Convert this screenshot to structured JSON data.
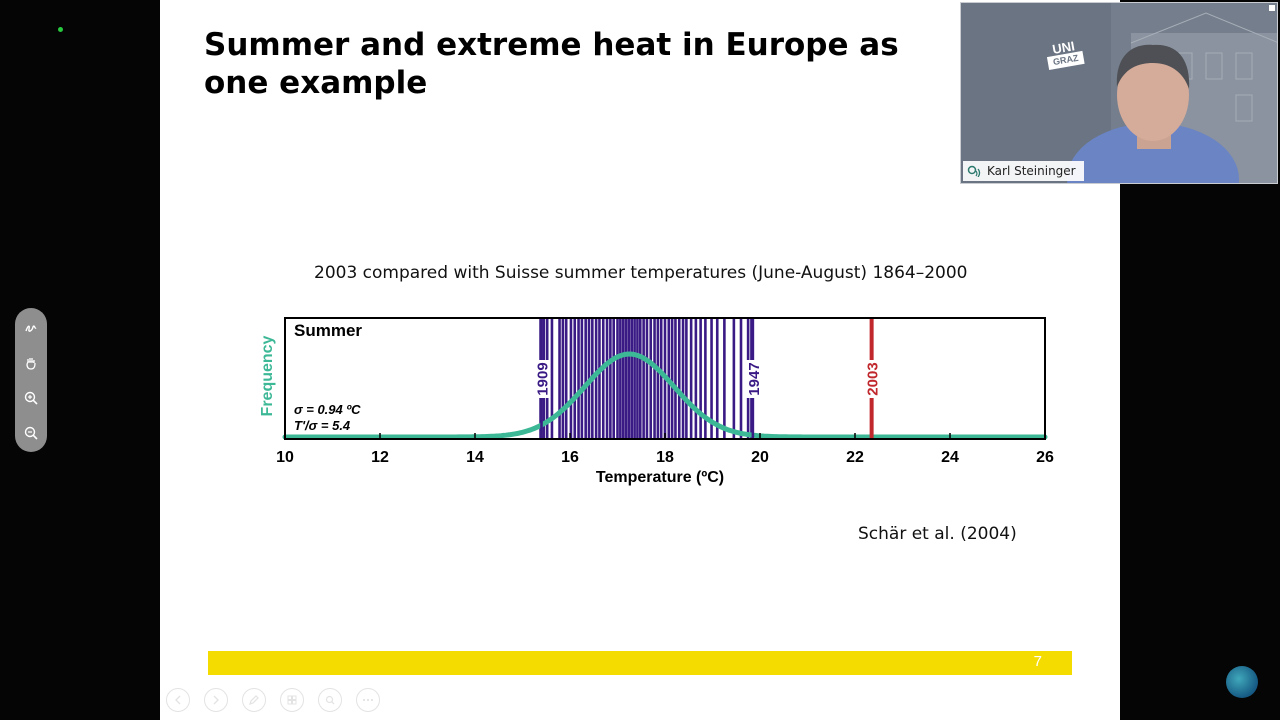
{
  "slide": {
    "title": "Summer and extreme heat in Europe as one example",
    "subtitle": "2003 compared with Suisse summer temperatures (June-August) 1864–2000",
    "citation": "Schär et al. (2004)",
    "page_number": "7"
  },
  "video": {
    "participant_name": "Karl Steininger",
    "logo_top": "UNI",
    "logo_bottom": "GRAZ"
  },
  "toolbar": {
    "icons": [
      "pen-icon",
      "hand-icon",
      "zoom-in-icon",
      "zoom-out-icon"
    ]
  },
  "presentation_controls": [
    "previous-icon",
    "next-icon",
    "pen-icon",
    "slides-icon",
    "zoom-icon",
    "more-icon"
  ],
  "chart_data": {
    "type": "line",
    "panel_label": "Summer",
    "xlabel": "Temperature (ºC)",
    "ylabel": "Frequency",
    "xlim": [
      10,
      26
    ],
    "xticks": [
      10,
      12,
      14,
      16,
      18,
      20,
      22,
      24,
      26
    ],
    "stats": [
      "σ = 0.94 ºC",
      "T'/σ = 5.4"
    ],
    "distribution": {
      "mean": 17.25,
      "sd": 0.94,
      "color": "#3cb896"
    },
    "year_lines": [
      15.38,
      15.45,
      15.52,
      15.62,
      15.78,
      15.85,
      15.92,
      16.02,
      16.1,
      16.18,
      16.25,
      16.33,
      16.4,
      16.47,
      16.55,
      16.62,
      16.7,
      16.78,
      16.85,
      16.92,
      17.0,
      17.06,
      17.12,
      17.18,
      17.24,
      17.3,
      17.36,
      17.42,
      17.48,
      17.55,
      17.62,
      17.7,
      17.78,
      17.85,
      17.92,
      18.0,
      18.08,
      18.15,
      18.22,
      18.3,
      18.38,
      18.45,
      18.55,
      18.65,
      18.75,
      18.85,
      18.98,
      19.1,
      19.25,
      19.45,
      19.6,
      19.75,
      19.82
    ],
    "year_line_color": "#3a1a84",
    "labeled_years": [
      {
        "year": "1909",
        "x": 15.4,
        "color": "#3a1a84"
      },
      {
        "year": "1947",
        "x": 19.85,
        "color": "#3a1a84"
      },
      {
        "year": "2003",
        "x": 22.35,
        "color": "#c0282d"
      }
    ]
  }
}
